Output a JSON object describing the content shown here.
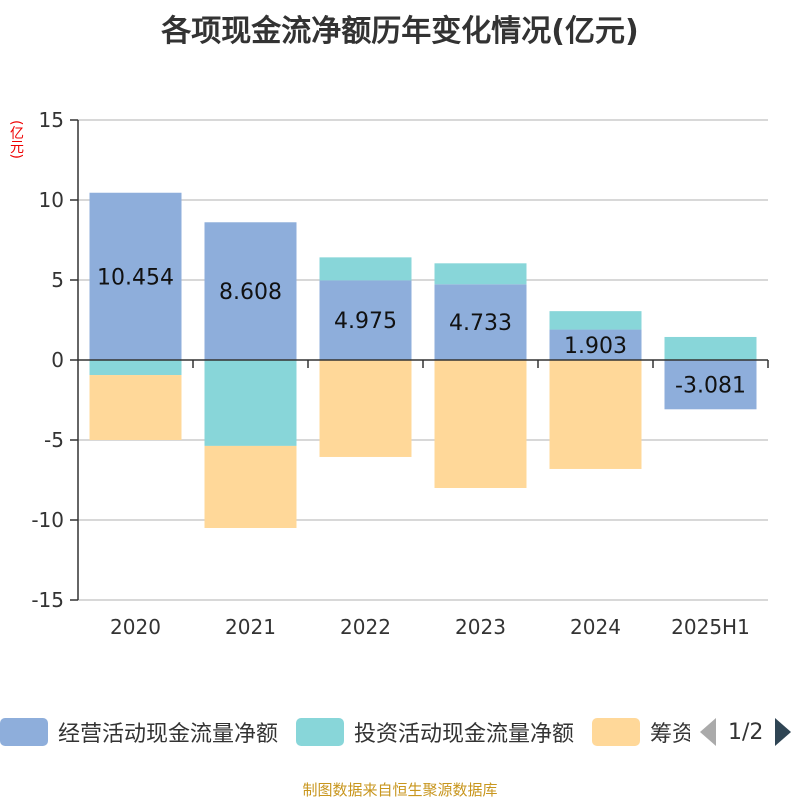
{
  "title": "各项现金流净额历年变化情况(亿元)",
  "source": "制图数据来自恒生聚源数据库",
  "pager": "1/2",
  "chart_data": {
    "type": "bar",
    "stacked": true,
    "title": "各项现金流净额历年变化情况(亿元)",
    "ylabel": "(亿元)",
    "ylim": [
      -15,
      15
    ],
    "yticks": [
      15,
      10,
      5,
      0,
      -5,
      -10,
      -15
    ],
    "categories": [
      "2020",
      "2021",
      "2022",
      "2023",
      "2024",
      "2025H1"
    ],
    "series": [
      {
        "name": "经营活动现金流量净额",
        "color": "#8eaedb",
        "values": [
          10.454,
          8.608,
          4.975,
          4.733,
          1.903,
          -3.081
        ],
        "labels": [
          "10.454",
          "8.608",
          "4.975",
          "4.733",
          "1.903",
          "-3.081"
        ]
      },
      {
        "name": "投资活动现金流量净额",
        "color": "#88d6d9",
        "values": [
          -0.94,
          -5.37,
          1.44,
          1.31,
          1.15,
          1.44
        ]
      },
      {
        "name": "筹资活动现金流量净额",
        "color": "#ffd899",
        "values": [
          -4.06,
          -5.13,
          -6.06,
          -8.0,
          -6.81,
          0
        ]
      }
    ],
    "legend": "bottom"
  }
}
